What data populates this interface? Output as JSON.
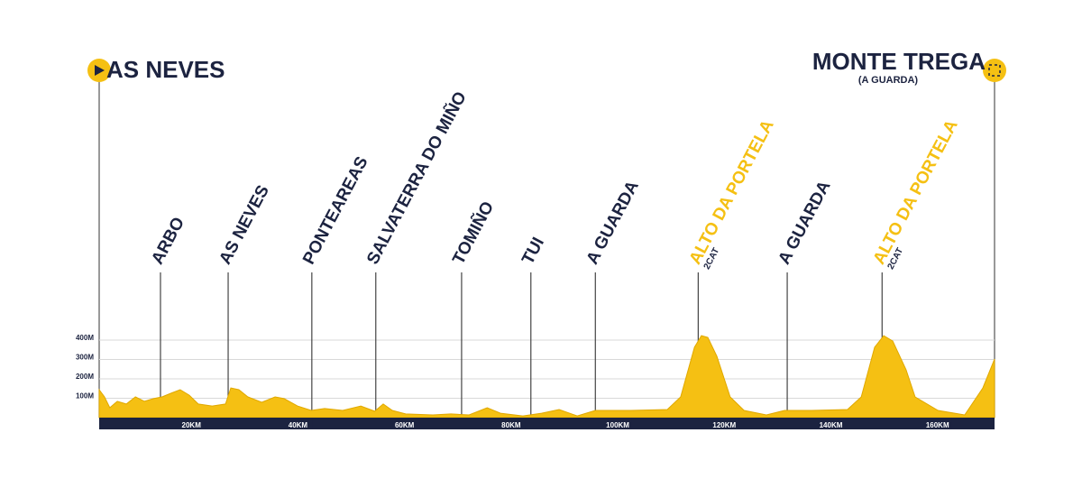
{
  "chart_data": {
    "type": "area",
    "start": "AS NEVES",
    "finish": "MONTE TREGA",
    "finish_subtitle": "(A GUARDA)",
    "color": "#f5c013",
    "x": [
      0,
      1,
      2,
      3.4,
      5.1,
      6.8,
      8.5,
      10.2,
      11.8,
      13.5,
      15.2,
      16.9,
      18.6,
      21.2,
      23.7,
      24.7,
      26.2,
      27.9,
      30.5,
      33,
      34.7,
      37.2,
      39.8,
      42.3,
      45.7,
      49.1,
      51.7,
      53.3,
      55,
      57.5,
      62.6,
      66,
      69.4,
      72.8,
      75.3,
      79.5,
      83,
      86.3,
      89.7,
      93.1,
      99.8,
      106.6,
      109.1,
      111.7,
      113,
      114.2,
      115.9,
      118.4,
      121,
      125.2,
      128.6,
      133.7,
      140.4,
      143,
      145.5,
      147.2,
      148.9,
      151.4,
      153.1,
      157.4,
      162.4,
      165.8,
      168
    ],
    "values": [
      144,
      107,
      51,
      84,
      70,
      107,
      84,
      98,
      107,
      126,
      144,
      116,
      70,
      60,
      70,
      153,
      144,
      107,
      79,
      107,
      98,
      60,
      37,
      47,
      37,
      60,
      33,
      70,
      37,
      19,
      14,
      19,
      14,
      51,
      23,
      9,
      23,
      42,
      9,
      37,
      37,
      42,
      107,
      363,
      423,
      414,
      316,
      107,
      37,
      14,
      37,
      37,
      42,
      107,
      363,
      423,
      395,
      247,
      107,
      37,
      14,
      153,
      302
    ],
    "xlim": [
      0,
      168
    ],
    "ylim": [
      0,
      400
    ],
    "xticks": [
      {
        "value": 20,
        "label": "20KM"
      },
      {
        "value": 40,
        "label": "40KM"
      },
      {
        "value": 60,
        "label": "60KM"
      },
      {
        "value": 80,
        "label": "80KM"
      },
      {
        "value": 100,
        "label": "100KM"
      },
      {
        "value": 120,
        "label": "120KM"
      },
      {
        "value": 140,
        "label": "140KM"
      },
      {
        "value": 160,
        "label": "160KM"
      }
    ],
    "yticks": [
      {
        "value": 100,
        "label": "100M"
      },
      {
        "value": 200,
        "label": "200M"
      },
      {
        "value": 300,
        "label": "300M"
      },
      {
        "value": 400,
        "label": "400M"
      }
    ],
    "grid": true,
    "waypoints": [
      {
        "name": "ARBO",
        "km": 11.5,
        "color": "#1c2340"
      },
      {
        "name": "AS NEVES",
        "km": 24.2,
        "color": "#1c2340"
      },
      {
        "name": "PONTEAREAS",
        "km": 39.9,
        "color": "#1c2340"
      },
      {
        "name": "SALVATERRA DO MIÑO",
        "km": 51.9,
        "color": "#1c2340"
      },
      {
        "name": "TOMIÑO",
        "km": 68,
        "color": "#1c2340"
      },
      {
        "name": "TUI",
        "km": 81,
        "color": "#1c2340"
      },
      {
        "name": "A GUARDA",
        "km": 93.1,
        "color": "#1c2340"
      },
      {
        "name": "ALTO DA PORTELA",
        "km": 112.4,
        "color": "#f5c013",
        "category": "2CAT"
      },
      {
        "name": "A GUARDA",
        "km": 129.1,
        "color": "#1c2340"
      },
      {
        "name": "ALTO DA PORTELA",
        "km": 146.9,
        "color": "#f5c013",
        "category": "2CAT"
      }
    ]
  }
}
